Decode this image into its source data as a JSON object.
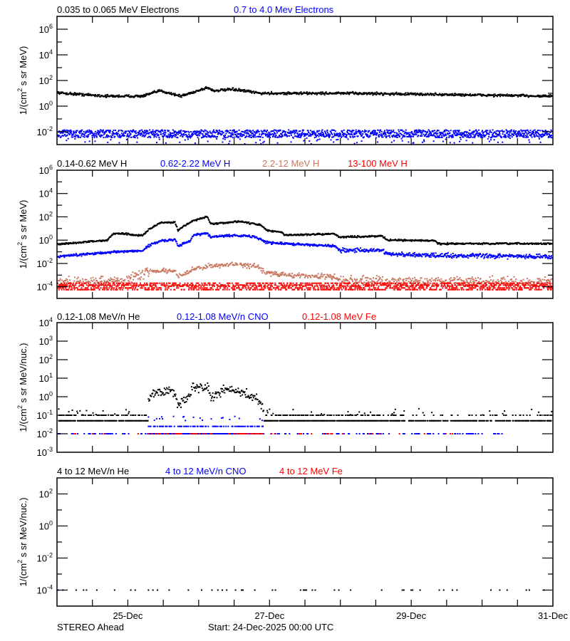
{
  "footer": {
    "spacecraft": "STEREO Ahead",
    "start": "Start: 24-Dec-2025 00:00 UTC"
  },
  "chart_data": [
    {
      "type": "scatter",
      "xlim": [
        "2025-12-24T00:00",
        "2025-12-31T00:00"
      ],
      "yscale": "log",
      "ylim": [
        0.001,
        10000000.0
      ],
      "ylabel": {
        "pre": "1/(cm",
        "sup": "2",
        "post": " s sr MeV)"
      },
      "y_tick_base": "10",
      "y_tick_exponents": [
        "6",
        "4",
        "2",
        "0",
        "-2"
      ],
      "series": [
        {
          "name": "0.035 to 0.065 MeV Electrons",
          "color": "#000000",
          "profile": [
            [
              "2025-12-24T00:00",
              11
            ],
            [
              "2025-12-24T17:00",
              6
            ],
            [
              "2025-12-25T05:00",
              6
            ],
            [
              "2025-12-25T11:00",
              16
            ],
            [
              "2025-12-25T18:00",
              6
            ],
            [
              "2025-12-26T03:00",
              28
            ],
            [
              "2025-12-26T05:00",
              16
            ],
            [
              "2025-12-26T12:00",
              20
            ],
            [
              "2025-12-26T21:00",
              10
            ],
            [
              "2025-12-28T05:00",
              10
            ],
            [
              "2025-12-31T00:00",
              6
            ]
          ]
        },
        {
          "name": "0.7 to 4.0 Mev Electrons",
          "color": "#0000ff",
          "profile": [
            [
              "2025-12-24T00:00",
              0.007
            ],
            [
              "2025-12-31T00:00",
              0.007
            ]
          ]
        }
      ]
    },
    {
      "type": "scatter",
      "xlim": [
        "2025-12-24T00:00",
        "2025-12-31T00:00"
      ],
      "yscale": "log",
      "ylim": [
        1e-05,
        1000000.0
      ],
      "ylabel": {
        "pre": "1/(cm",
        "sup": "2",
        "post": " s sr MeV)"
      },
      "y_tick_base": "10",
      "y_tick_exponents": [
        "6",
        "4",
        "2",
        "0",
        "-2",
        "-4"
      ],
      "series": [
        {
          "name": "0.14-0.62 MeV H",
          "color": "#000000",
          "profile": [
            [
              "2025-12-24T00:00",
              0.43
            ],
            [
              "2025-12-24T17:00",
              1.0
            ],
            [
              "2025-12-24T19:00",
              3.5
            ],
            [
              "2025-12-25T00:00",
              3.5
            ],
            [
              "2025-12-25T02:00",
              2.7
            ],
            [
              "2025-12-25T05:00",
              2.7
            ],
            [
              "2025-12-25T07:00",
              8
            ],
            [
              "2025-12-25T11:00",
              30
            ],
            [
              "2025-12-25T16:00",
              35
            ],
            [
              "2025-12-25T17:00",
              7
            ],
            [
              "2025-12-25T20:00",
              23
            ],
            [
              "2025-12-25T22:00",
              47
            ],
            [
              "2025-12-26T03:00",
              100
            ],
            [
              "2025-12-26T04:00",
              25
            ],
            [
              "2025-12-26T10:00",
              32
            ],
            [
              "2025-12-26T14:00",
              40
            ],
            [
              "2025-12-26T21:00",
              20
            ],
            [
              "2025-12-26T23:00",
              7
            ],
            [
              "2025-12-27T04:00",
              4.8
            ],
            [
              "2025-12-27T05:00",
              2.7
            ],
            [
              "2025-12-27T22:00",
              3.5
            ],
            [
              "2025-12-28T00:00",
              1.8
            ],
            [
              "2025-12-28T14:00",
              2.3
            ],
            [
              "2025-12-28T16:00",
              1.0
            ],
            [
              "2025-12-29T08:00",
              0.9
            ],
            [
              "2025-12-29T09:00",
              0.5
            ],
            [
              "2025-12-31T00:00",
              0.5
            ]
          ]
        },
        {
          "name": "0.62-2.22 MeV H",
          "color": "#0000ff",
          "profile": [
            [
              "2025-12-24T00:00",
              0.038
            ],
            [
              "2025-12-24T17:00",
              0.09
            ],
            [
              "2025-12-25T05:00",
              0.125
            ],
            [
              "2025-12-25T07:00",
              0.32
            ],
            [
              "2025-12-25T11:00",
              0.87
            ],
            [
              "2025-12-25T16:00",
              1.15
            ],
            [
              "2025-12-25T17:00",
              0.32
            ],
            [
              "2025-12-25T19:00",
              0.5
            ],
            [
              "2025-12-25T21:00",
              0.76
            ],
            [
              "2025-12-25T22:00",
              2.7
            ],
            [
              "2025-12-26T03:00",
              4.2
            ],
            [
              "2025-12-26T04:00",
              1.8
            ],
            [
              "2025-12-26T12:00",
              2.7
            ],
            [
              "2025-12-26T19:00",
              2.0
            ],
            [
              "2025-12-26T23:00",
              0.63
            ],
            [
              "2025-12-27T05:00",
              0.5
            ],
            [
              "2025-12-27T22:00",
              0.32
            ],
            [
              "2025-12-28T00:00",
              0.14
            ],
            [
              "2025-12-28T14:00",
              0.125
            ],
            [
              "2025-12-28T16:00",
              0.063
            ],
            [
              "2025-12-29T06:00",
              0.05
            ],
            [
              "2025-12-31T00:00",
              0.038
            ]
          ]
        },
        {
          "name": "2.2-12 MeV H",
          "color": "#c87860",
          "profile": [
            [
              "2025-12-24T00:00",
              0.00025
            ],
            [
              "2025-12-24T23:00",
              0.00035
            ],
            [
              "2025-12-25T07:00",
              0.0022
            ],
            [
              "2025-12-25T16:00",
              0.0022
            ],
            [
              "2025-12-25T17:00",
              0.0007
            ],
            [
              "2025-12-25T22:00",
              0.003
            ],
            [
              "2025-12-26T03:00",
              0.006
            ],
            [
              "2025-12-26T12:00",
              0.008
            ],
            [
              "2025-12-26T19:00",
              0.006
            ],
            [
              "2025-12-26T23:00",
              0.0016
            ],
            [
              "2025-12-27T05:00",
              0.001
            ],
            [
              "2025-12-27T22:00",
              0.0007
            ],
            [
              "2025-12-28T00:00",
              0.00035
            ],
            [
              "2025-12-31T00:00",
              0.00025
            ]
          ]
        },
        {
          "name": "13-100 MeV H",
          "color": "#ff0000",
          "profile": [
            [
              "2025-12-24T00:00",
              0.0001
            ],
            [
              "2025-12-31T00:00",
              0.0001
            ]
          ]
        }
      ]
    },
    {
      "type": "scatter",
      "xlim": [
        "2025-12-24T00:00",
        "2025-12-31T00:00"
      ],
      "yscale": "log",
      "ylim": [
        0.001,
        10000.0
      ],
      "ylabel": {
        "pre": "1/(cm",
        "sup": "2",
        "post": " s sr MeV/nuc.)"
      },
      "y_tick_base": "10",
      "y_tick_exponents": [
        "4",
        "3",
        "2",
        "1",
        "0",
        "-1",
        "-2",
        "-3"
      ],
      "event_interval": [
        "2025-12-25T07:00",
        "2025-12-26T22:00"
      ],
      "series": [
        {
          "name": "0.12-1.08 MeV/n He",
          "color": "#000000",
          "levels": [
            0.05,
            0.1
          ],
          "profile": [
            [
              "2025-12-24T00:00",
              0.1
            ],
            [
              "2025-12-25T06:00",
              0.1
            ],
            [
              "2025-12-25T07:00",
              1.0
            ],
            [
              "2025-12-25T10:00",
              1.6
            ],
            [
              "2025-12-25T16:00",
              1.6
            ],
            [
              "2025-12-25T17:00",
              0.34
            ],
            [
              "2025-12-25T21:00",
              1.26
            ],
            [
              "2025-12-25T22:00",
              2.7
            ],
            [
              "2025-12-26T03:00",
              3.8
            ],
            [
              "2025-12-26T04:00",
              0.8
            ],
            [
              "2025-12-26T07:00",
              1.6
            ],
            [
              "2025-12-26T10:00",
              2.7
            ],
            [
              "2025-12-26T14:00",
              1.7
            ],
            [
              "2025-12-26T20:00",
              0.83
            ],
            [
              "2025-12-26T22:00",
              0.17
            ],
            [
              "2025-12-27T22:00",
              0.12
            ],
            [
              "2025-12-31T00:00",
              0.1
            ]
          ]
        },
        {
          "name": "0.12-1.08 MeV/n CNO",
          "color": "#0000ff",
          "levels": [
            0.01,
            0.025
          ]
        },
        {
          "name": "0.12-1.08 MeV Fe",
          "color": "#ff0000",
          "levels": [
            0.01
          ]
        }
      ]
    },
    {
      "type": "scatter",
      "xlim": [
        "2025-12-24T00:00",
        "2025-12-31T00:00"
      ],
      "yscale": "log",
      "ylim": [
        1e-05,
        1000.0
      ],
      "ylabel": {
        "pre": "1/(cm",
        "sup": "2",
        "post": " s sr MeV/nuc.)"
      },
      "y_tick_base": "10",
      "y_tick_exponents": [
        "2",
        "0",
        "-2",
        "-4"
      ],
      "x_tick_labels": [
        "25-Dec",
        "27-Dec",
        "29-Dec",
        "31-Dec"
      ],
      "x_tick_dates": [
        "2025-12-25T00:00",
        "2025-12-27T00:00",
        "2025-12-29T00:00",
        "2025-12-31T00:00"
      ],
      "series": [
        {
          "name": "4 to 12 MeV/n He",
          "color": "#000000",
          "levels": [
            0.0001
          ]
        },
        {
          "name": "4 to 12 MeV/n CNO",
          "color": "#0000ff",
          "levels": [
            0.0001
          ]
        },
        {
          "name": "4 to 12 MeV Fe",
          "color": "#ff0000",
          "levels": [
            0.0001
          ]
        }
      ]
    }
  ]
}
